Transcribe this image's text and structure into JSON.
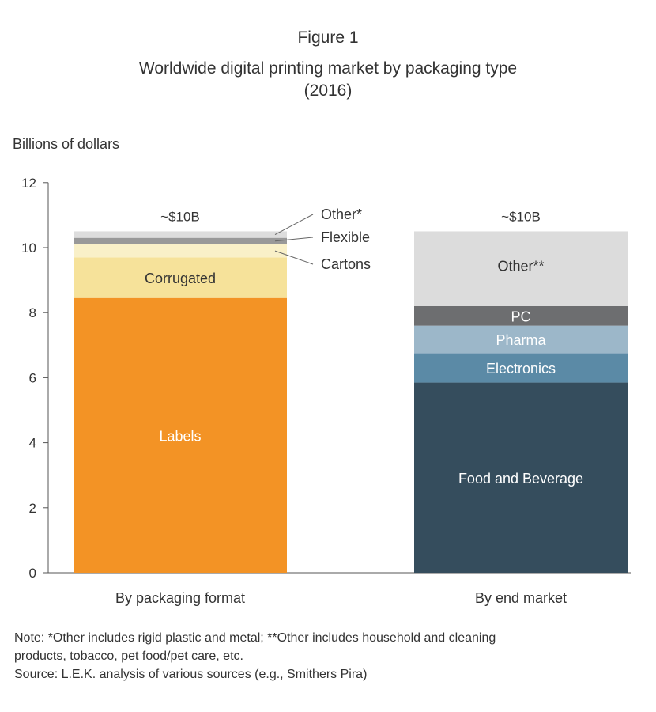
{
  "figure_label": "Figure 1",
  "title_line1": "Worldwide digital printing market by packaging type",
  "title_line2": "(2016)",
  "chart_data": {
    "type": "bar",
    "stacked": true,
    "ylabel": "Billions of dollars",
    "ylim": [
      0,
      12
    ],
    "yticks": [
      0,
      2,
      4,
      6,
      8,
      10,
      12
    ],
    "grid": false,
    "legend": "none",
    "categories": [
      "By packaging format",
      "By end market"
    ],
    "bars": [
      {
        "category": "By packaging format",
        "total_label": "~$10B",
        "segments": [
          {
            "name": "Labels",
            "value": 8.45,
            "color": "#f39325",
            "label_position": "inside",
            "label_color": "#ffffff"
          },
          {
            "name": "Corrugated",
            "value": 1.25,
            "color": "#f6e29a",
            "label_position": "inside",
            "label_color": "#333333"
          },
          {
            "name": "Cartons",
            "value": 0.4,
            "color": "#f9f0c8",
            "label_position": "callout",
            "label_color": "#333333"
          },
          {
            "name": "Flexible",
            "value": 0.2,
            "color": "#999999",
            "label_position": "callout",
            "label_color": "#333333"
          },
          {
            "name": "Other*",
            "value": 0.2,
            "color": "#dddddd",
            "label_position": "callout",
            "label_color": "#333333"
          }
        ]
      },
      {
        "category": "By end market",
        "total_label": "~$10B",
        "segments": [
          {
            "name": "Food and Beverage",
            "value": 5.85,
            "color": "#354d5d",
            "label_position": "inside",
            "label_color": "#ffffff"
          },
          {
            "name": "Electronics",
            "value": 0.9,
            "color": "#5b8aa6",
            "label_position": "inside",
            "label_color": "#ffffff"
          },
          {
            "name": "Pharma",
            "value": 0.85,
            "color": "#9cb7c9",
            "label_position": "inside",
            "label_color": "#ffffff"
          },
          {
            "name": "PC",
            "value": 0.6,
            "color": "#6d6e70",
            "label_position": "inside",
            "label_color": "#ffffff"
          },
          {
            "name": "Other**",
            "value": 2.3,
            "color": "#dcdcdc",
            "label_position": "inside-top",
            "label_color": "#333333"
          }
        ]
      }
    ]
  },
  "note_line1": "Note: *Other includes rigid plastic and metal; **Other includes household and cleaning",
  "note_line2": "products, tobacco, pet food/pet care, etc.",
  "source_line": "Source: L.E.K. analysis of various sources (e.g., Smithers Pira)"
}
